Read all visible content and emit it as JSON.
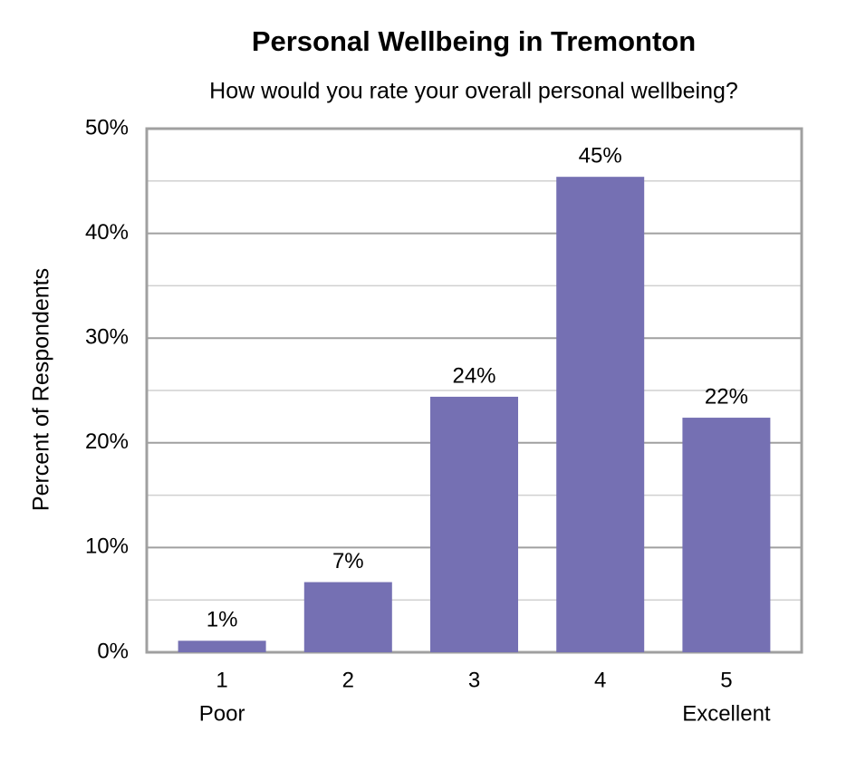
{
  "chart_data": {
    "type": "bar",
    "title": "Personal Wellbeing in Tremonton",
    "subtitle": "How would you rate your overall personal wellbeing?",
    "y_label": "Percent of Respondents",
    "categories": [
      "1",
      "2",
      "3",
      "4",
      "5"
    ],
    "category_sublabels": [
      "Poor",
      null,
      null,
      null,
      "Excellent"
    ],
    "values": [
      1.1,
      6.7,
      24.4,
      45.4,
      22.4
    ],
    "value_labels": [
      "1%",
      "7%",
      "24%",
      "45%",
      "22%"
    ],
    "color": "#7570b3",
    "ylim": [
      0,
      50
    ],
    "yticks": [
      {
        "value": 0,
        "label": "0%"
      },
      {
        "value": 10,
        "label": "10%"
      },
      {
        "value": 20,
        "label": "20%"
      },
      {
        "value": 30,
        "label": "30%"
      },
      {
        "value": 40,
        "label": "40%"
      },
      {
        "value": 50,
        "label": "50%"
      }
    ],
    "minor_grid": [
      5,
      15,
      25,
      35,
      45
    ],
    "grid": true
  }
}
